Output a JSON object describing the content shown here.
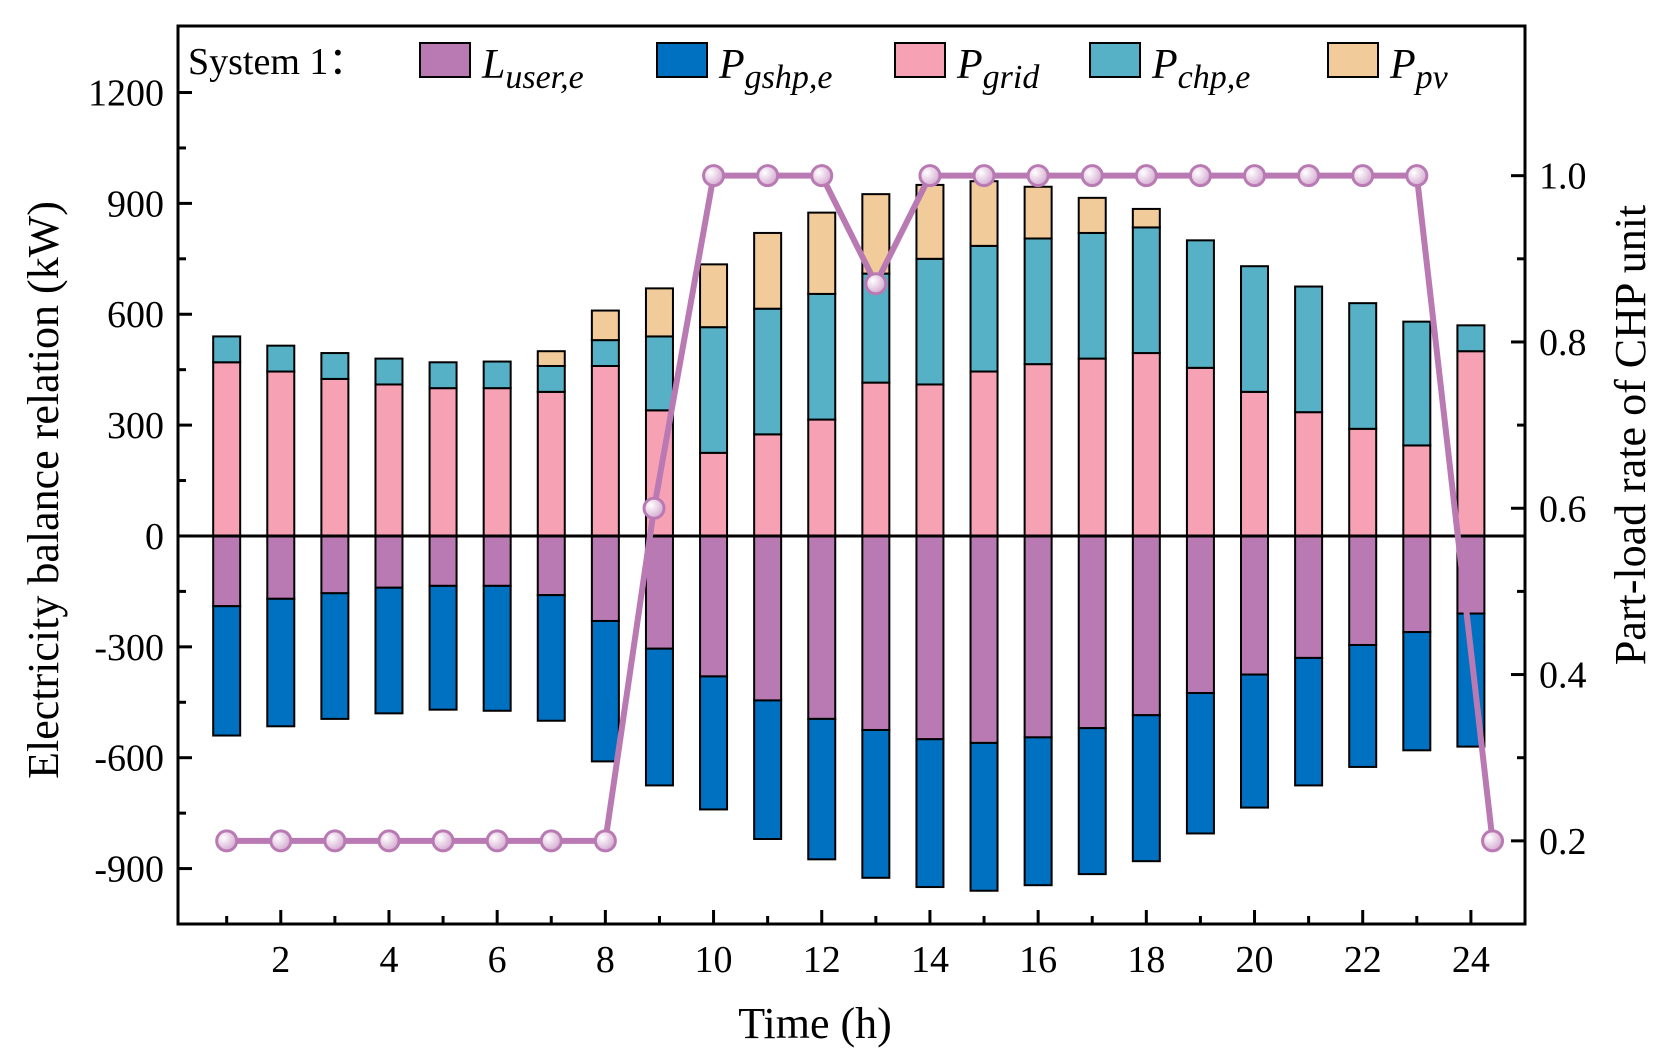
{
  "legend_label": "System 1：",
  "chart_data": {
    "type": "bar",
    "x": [
      1,
      2,
      3,
      4,
      5,
      6,
      7,
      8,
      9,
      10,
      11,
      12,
      13,
      14,
      15,
      16,
      17,
      18,
      19,
      20,
      21,
      22,
      23,
      24
    ],
    "xlabel": "Time (h)",
    "ylabel": "Electricity balance relation (kW)",
    "y2label": "Part-load rate of CHP unit",
    "xticks": [
      2,
      4,
      6,
      8,
      10,
      12,
      14,
      16,
      18,
      20,
      22,
      24
    ],
    "yticks": [
      -900,
      -600,
      -300,
      0,
      300,
      600,
      900,
      1200
    ],
    "y2ticks": [
      0.2,
      0.4,
      0.6,
      0.8,
      1.0
    ],
    "xlim": [
      0.1,
      25.0
    ],
    "ylim": [
      -1050,
      1380
    ],
    "y2lim": [
      0.1,
      1.18
    ],
    "stacked": true,
    "series": [
      {
        "name": "L",
        "sub": "user,e",
        "color": "#b97ab3",
        "values": [
          -190,
          -170,
          -155,
          -140,
          -135,
          -135,
          -160,
          -230,
          -305,
          -380,
          -445,
          -495,
          -525,
          -550,
          -560,
          -545,
          -520,
          -485,
          -425,
          -375,
          -330,
          -295,
          -260,
          -210
        ]
      },
      {
        "name": "P",
        "sub": "gshp,e",
        "color": "#0070c0",
        "values": [
          -350,
          -345,
          -340,
          -340,
          -335,
          -338,
          -340,
          -380,
          -370,
          -360,
          -375,
          -380,
          -400,
          -400,
          -400,
          -400,
          -395,
          -395,
          -380,
          -360,
          -345,
          -330,
          -320,
          -360
        ]
      },
      {
        "name": "P",
        "sub": "grid",
        "color": "#f7a1b4",
        "values": [
          470,
          445,
          425,
          410,
          400,
          400,
          390,
          460,
          340,
          225,
          275,
          315,
          415,
          410,
          445,
          465,
          480,
          495,
          455,
          390,
          335,
          290,
          245,
          500
        ]
      },
      {
        "name": "P",
        "sub": "chp,e",
        "color": "#56b0c6",
        "values": [
          70,
          70,
          70,
          70,
          70,
          72,
          70,
          70,
          200,
          340,
          340,
          340,
          295,
          340,
          340,
          340,
          340,
          340,
          345,
          340,
          340,
          340,
          335,
          70
        ]
      },
      {
        "name": "P",
        "sub": "pv",
        "color": "#f2cb9b",
        "values": [
          0,
          0,
          0,
          0,
          0,
          0,
          40,
          80,
          130,
          170,
          205,
          220,
          215,
          200,
          175,
          140,
          95,
          50,
          0,
          0,
          0,
          0,
          0,
          0
        ]
      }
    ],
    "line": {
      "name": "Part-load rate of CHP unit",
      "axis": "right",
      "color": "#b97ab3",
      "x": [
        1,
        2,
        3,
        4,
        5,
        6,
        7,
        8,
        8.9,
        10,
        11,
        12,
        13,
        14,
        15,
        16,
        17,
        18,
        19,
        20,
        21,
        22,
        23,
        24.4
      ],
      "values": [
        0.2,
        0.2,
        0.2,
        0.2,
        0.2,
        0.2,
        0.2,
        0.2,
        0.6,
        1.0,
        1.0,
        1.0,
        0.87,
        1.0,
        1.0,
        1.0,
        1.0,
        1.0,
        1.0,
        1.0,
        1.0,
        1.0,
        1.0,
        0.2
      ]
    }
  }
}
